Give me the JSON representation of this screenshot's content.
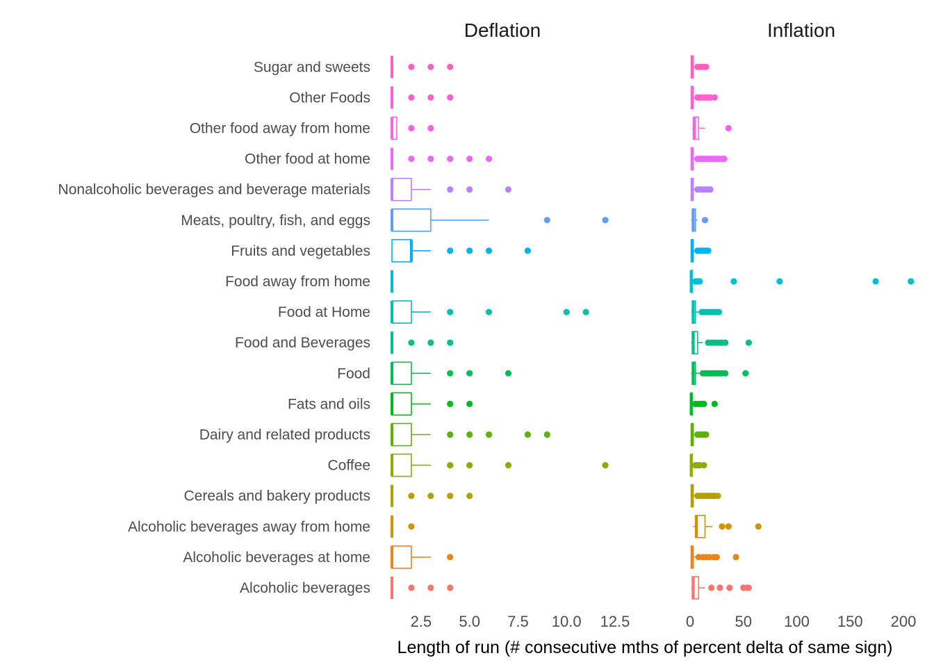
{
  "chart_data": {
    "type": "boxplot",
    "xlabel": "Length of run (# consecutive mths of percent delta of same sign)",
    "categories": [
      "Alcoholic beverages",
      "Alcoholic beverages at home",
      "Alcoholic beverages away from home",
      "Cereals and bakery products",
      "Coffee",
      "Dairy and related products",
      "Fats and oils",
      "Food",
      "Food and Beverages",
      "Food at Home",
      "Food away from home",
      "Fruits and vegetables",
      "Meats, poultry, fish, and eggs",
      "Nonalcoholic beverages and beverage materials",
      "Other food at home",
      "Other food away from home",
      "Other Foods",
      "Sugar and sweets"
    ],
    "colors": [
      "#F8766D",
      "#E7851E",
      "#D09400",
      "#B2A100",
      "#8EAB00",
      "#5EB300",
      "#00B81F",
      "#00BC59",
      "#00BF87",
      "#00C0AF",
      "#00BCD4",
      "#00B0F6",
      "#619CFF",
      "#B983FF",
      "#E76BF3",
      "#F763E0",
      "#FD61D1",
      "#FF62BC"
    ],
    "panels": [
      {
        "title": "Deflation",
        "xlim": [
          1,
          13.6
        ],
        "xticks": [
          2.5,
          5.0,
          7.5,
          10.0,
          12.5
        ],
        "xtick_labels": [
          "2.5",
          "5.0",
          "7.5",
          "10.0",
          "12.5"
        ],
        "boxes": [
          {
            "q1": 1,
            "median": 1,
            "q3": 1,
            "whisker_low": 1,
            "whisker_high": 1,
            "outliers": [
              2,
              3,
              4
            ]
          },
          {
            "q1": 1,
            "median": 1,
            "q3": 2,
            "whisker_low": 1,
            "whisker_high": 3,
            "outliers": [
              4
            ]
          },
          {
            "q1": 1,
            "median": 1,
            "q3": 1,
            "whisker_low": 1,
            "whisker_high": 1,
            "outliers": [
              2
            ]
          },
          {
            "q1": 1,
            "median": 1,
            "q3": 1,
            "whisker_low": 1,
            "whisker_high": 1,
            "outliers": [
              2,
              3,
              4,
              5
            ]
          },
          {
            "q1": 1,
            "median": 1,
            "q3": 2,
            "whisker_low": 1,
            "whisker_high": 3,
            "outliers": [
              4,
              5,
              7,
              12
            ]
          },
          {
            "q1": 1,
            "median": 1,
            "q3": 2,
            "whisker_low": 1,
            "whisker_high": 3,
            "outliers": [
              4,
              5,
              6,
              8,
              9
            ]
          },
          {
            "q1": 1,
            "median": 1,
            "q3": 2,
            "whisker_low": 1,
            "whisker_high": 3,
            "outliers": [
              4,
              5
            ]
          },
          {
            "q1": 1,
            "median": 1,
            "q3": 2,
            "whisker_low": 1,
            "whisker_high": 3,
            "outliers": [
              4,
              5,
              7
            ]
          },
          {
            "q1": 1,
            "median": 1,
            "q3": 1,
            "whisker_low": 1,
            "whisker_high": 1,
            "outliers": [
              2,
              3,
              4
            ]
          },
          {
            "q1": 1,
            "median": 1,
            "q3": 2,
            "whisker_low": 1,
            "whisker_high": 3,
            "outliers": [
              4,
              6,
              10,
              11
            ]
          },
          {
            "q1": 1,
            "median": 1,
            "q3": 1,
            "whisker_low": 1,
            "whisker_high": 1,
            "outliers": []
          },
          {
            "q1": 1,
            "median": 2,
            "q3": 2,
            "whisker_low": 1,
            "whisker_high": 3,
            "outliers": [
              4,
              5,
              6,
              8
            ]
          },
          {
            "q1": 1,
            "median": 1,
            "q3": 3,
            "whisker_low": 1,
            "whisker_high": 6,
            "outliers": [
              9,
              12
            ]
          },
          {
            "q1": 1,
            "median": 1,
            "q3": 2,
            "whisker_low": 1,
            "whisker_high": 3,
            "outliers": [
              4,
              5,
              7
            ]
          },
          {
            "q1": 1,
            "median": 1,
            "q3": 1,
            "whisker_low": 1,
            "whisker_high": 1,
            "outliers": [
              2,
              3,
              4,
              5,
              6
            ]
          },
          {
            "q1": 1,
            "median": 1,
            "q3": 1.25,
            "whisker_low": 1,
            "whisker_high": 1.25,
            "outliers": [
              2,
              3
            ]
          },
          {
            "q1": 1,
            "median": 1,
            "q3": 1,
            "whisker_low": 1,
            "whisker_high": 1,
            "outliers": [
              2,
              3,
              4
            ]
          },
          {
            "q1": 1,
            "median": 1,
            "q3": 1,
            "whisker_low": 1,
            "whisker_high": 1,
            "outliers": [
              2,
              3,
              4
            ]
          }
        ]
      },
      {
        "title": "Inflation",
        "xlim": [
          0,
          212
        ],
        "xticks": [
          0,
          50,
          100,
          150,
          200
        ],
        "xtick_labels": [
          "0",
          "50",
          "100",
          "150",
          "200"
        ],
        "boxes": [
          {
            "q1": 2,
            "median": 3,
            "q3": 8,
            "whisker_low": 1,
            "whisker_high": 14,
            "outliers": [
              20,
              28,
              37,
              50,
              53,
              55
            ]
          },
          {
            "q1": 1,
            "median": 2,
            "q3": 3,
            "whisker_low": 1,
            "whisker_high": 5,
            "outliers": [
              8,
              12,
              15,
              18,
              22,
              25,
              43
            ]
          },
          {
            "q1": 5,
            "median": 6,
            "q3": 14,
            "whisker_low": 3,
            "whisker_high": 21,
            "outliers": [
              30,
              36,
              64
            ]
          },
          {
            "q1": 1,
            "median": 2,
            "q3": 3,
            "whisker_low": 1,
            "whisker_high": 5,
            "outliers": [
              7,
              10,
              12,
              15,
              17,
              19,
              21,
              23,
              26
            ]
          },
          {
            "q1": 1,
            "median": 1,
            "q3": 2,
            "whisker_low": 1,
            "whisker_high": 3,
            "outliers": [
              5,
              7,
              9,
              13
            ]
          },
          {
            "q1": 1,
            "median": 2,
            "q3": 3,
            "whisker_low": 1,
            "whisker_high": 5,
            "outliers": [
              7,
              9,
              11,
              13,
              15
            ]
          },
          {
            "q1": 1,
            "median": 1,
            "q3": 2,
            "whisker_low": 1,
            "whisker_high": 3,
            "outliers": [
              5,
              7,
              9,
              11,
              13,
              23
            ]
          },
          {
            "q1": 2,
            "median": 3,
            "q3": 5,
            "whisker_low": 1,
            "whisker_high": 9,
            "outliers": [
              12,
              14,
              16,
              18,
              20,
              22,
              24,
              26,
              28,
              30,
              33,
              52
            ]
          },
          {
            "q1": 2,
            "median": 3,
            "q3": 7,
            "whisker_low": 1,
            "whisker_high": 12,
            "outliers": [
              17,
              20,
              22,
              25,
              28,
              30,
              33,
              55
            ]
          },
          {
            "q1": 2,
            "median": 3,
            "q3": 5,
            "whisker_low": 1,
            "whisker_high": 8,
            "outliers": [
              11,
              13,
              15,
              18,
              21,
              24,
              27
            ]
          },
          {
            "q1": 1,
            "median": 1,
            "q3": 2,
            "whisker_low": 1,
            "whisker_high": 3,
            "outliers": [
              5,
              7,
              9,
              41,
              84,
              174,
              207
            ]
          },
          {
            "q1": 1,
            "median": 2,
            "q3": 3,
            "whisker_low": 1,
            "whisker_high": 5,
            "outliers": [
              7,
              9,
              11,
              13,
              15,
              17
            ]
          },
          {
            "q1": 2,
            "median": 3,
            "q3": 5,
            "whisker_low": 1,
            "whisker_high": 7,
            "outliers": [
              14
            ]
          },
          {
            "q1": 1,
            "median": 2,
            "q3": 3,
            "whisker_low": 1,
            "whisker_high": 5,
            "outliers": [
              7,
              9,
              11,
              13,
              15,
              17,
              19
            ]
          },
          {
            "q1": 1,
            "median": 2,
            "q3": 3,
            "whisker_low": 1,
            "whisker_high": 5,
            "outliers": [
              7,
              9,
              11,
              13,
              15,
              17,
              19,
              21,
              23,
              25,
              27,
              30,
              32
            ]
          },
          {
            "q1": 3,
            "median": 4,
            "q3": 8,
            "whisker_low": 2,
            "whisker_high": 14,
            "outliers": [
              36
            ]
          },
          {
            "q1": 1,
            "median": 2,
            "q3": 3,
            "whisker_low": 1,
            "whisker_high": 5,
            "outliers": [
              7,
              9,
              11,
              13,
              15,
              17,
              19,
              23
            ]
          },
          {
            "q1": 1,
            "median": 2,
            "q3": 3,
            "whisker_low": 1,
            "whisker_high": 5,
            "outliers": [
              7,
              9,
              11,
              13,
              15
            ]
          }
        ]
      }
    ]
  }
}
